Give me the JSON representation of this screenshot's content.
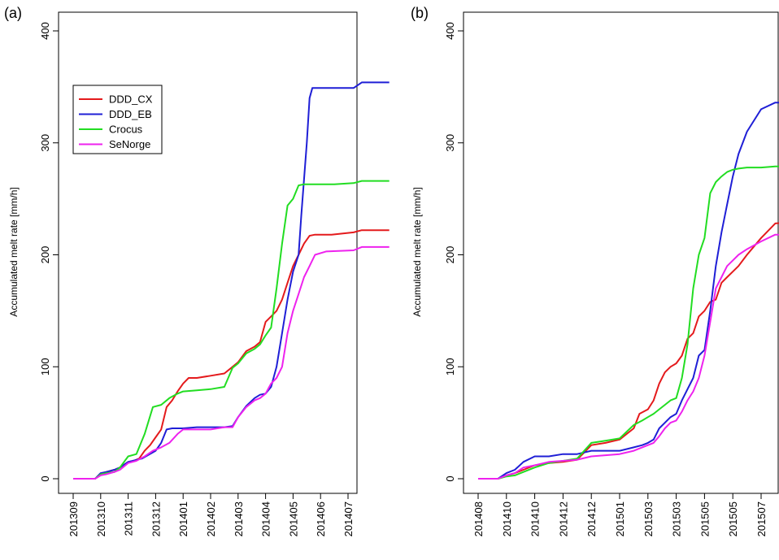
{
  "chart_data": [
    {
      "type": "line",
      "panel_label": "(a)",
      "ylabel": "Accumulated melt rate [mm/h]",
      "ylim": [
        0,
        400
      ],
      "yticks": [
        0,
        100,
        200,
        300,
        400
      ],
      "xticks": [
        "201309",
        "201310",
        "201311",
        "201312",
        "201401",
        "201402",
        "201403",
        "201404",
        "201405",
        "201406",
        "201407"
      ],
      "xlim": [
        0,
        11.5
      ],
      "legend": {
        "placement": "top-left"
      },
      "series": [
        {
          "name": "DDD_CX",
          "color": "#e41a1c",
          "x": [
            0,
            0.8,
            1.0,
            1.2,
            1.5,
            1.7,
            2.0,
            2.2,
            2.4,
            2.6,
            2.8,
            3.0,
            3.2,
            3.4,
            3.6,
            3.8,
            4.0,
            4.2,
            4.5,
            5.0,
            5.5,
            5.8,
            6.0,
            6.3,
            6.6,
            6.8,
            7.0,
            7.2,
            7.4,
            7.6,
            7.8,
            8.0,
            8.2,
            8.4,
            8.6,
            8.8,
            9.0,
            9.2,
            9.4,
            10.2,
            10.5,
            11.5
          ],
          "y": [
            0,
            0,
            4,
            6,
            8,
            10,
            15,
            16,
            18,
            25,
            30,
            37,
            44,
            64,
            70,
            78,
            85,
            90,
            90,
            92,
            94,
            100,
            104,
            114,
            118,
            122,
            140,
            145,
            150,
            160,
            175,
            190,
            200,
            210,
            217,
            218,
            218,
            218,
            218,
            220,
            222,
            222
          ]
        },
        {
          "name": "DDD_EB",
          "color": "#1f1fd6",
          "x": [
            0,
            0.8,
            1.0,
            1.2,
            1.5,
            1.7,
            2.0,
            2.5,
            3.0,
            3.2,
            3.4,
            3.6,
            4.0,
            4.5,
            5.0,
            5.5,
            5.8,
            6.0,
            6.3,
            6.6,
            6.8,
            7.0,
            7.2,
            7.4,
            7.6,
            7.8,
            8.0,
            8.2,
            8.3,
            8.5,
            8.6,
            8.7,
            8.9,
            9.3,
            10.2,
            10.5,
            11.5
          ],
          "y": [
            0,
            0,
            5,
            6,
            8,
            10,
            15,
            18,
            25,
            32,
            44,
            45,
            45,
            46,
            46,
            46,
            47,
            55,
            65,
            72,
            75,
            76,
            82,
            100,
            130,
            160,
            185,
            200,
            235,
            300,
            340,
            349,
            349,
            349,
            349,
            354,
            354
          ]
        },
        {
          "name": "Crocus",
          "color": "#22dd22",
          "x": [
            0,
            0.8,
            1.0,
            1.2,
            1.5,
            1.7,
            2.0,
            2.3,
            2.6,
            2.9,
            3.2,
            3.5,
            3.8,
            4.0,
            4.5,
            5.0,
            5.5,
            5.8,
            6.0,
            6.3,
            6.6,
            6.8,
            7.0,
            7.2,
            7.4,
            7.6,
            7.8,
            8.0,
            8.2,
            8.4,
            8.6,
            8.8,
            9.0,
            9.5,
            10.2,
            10.5,
            11.5
          ],
          "y": [
            0,
            0,
            4,
            5,
            6,
            10,
            20,
            22,
            40,
            64,
            66,
            72,
            76,
            78,
            79,
            80,
            82,
            99,
            103,
            112,
            116,
            120,
            128,
            135,
            170,
            210,
            244,
            250,
            262,
            263,
            263,
            263,
            263,
            263,
            264,
            266,
            266
          ]
        },
        {
          "name": "SeNorge",
          "color": "#ee22ee",
          "x": [
            0,
            0.8,
            1.0,
            1.2,
            1.5,
            1.7,
            2.0,
            2.3,
            2.6,
            2.9,
            3.2,
            3.5,
            3.8,
            4.0,
            4.3,
            4.6,
            5.0,
            5.5,
            5.8,
            6.0,
            6.3,
            6.6,
            6.8,
            7.0,
            7.2,
            7.4,
            7.6,
            7.8,
            8.0,
            8.2,
            8.4,
            8.6,
            8.8,
            9.2,
            10.2,
            10.5,
            11.5
          ],
          "y": [
            0,
            0,
            3,
            4,
            6,
            8,
            14,
            16,
            20,
            25,
            28,
            32,
            40,
            44,
            44,
            44,
            44,
            46,
            46,
            55,
            64,
            70,
            72,
            76,
            85,
            90,
            100,
            130,
            150,
            165,
            180,
            190,
            200,
            203,
            204,
            207,
            207
          ]
        }
      ]
    },
    {
      "type": "line",
      "panel_label": "(b)",
      "ylabel": "Accumulated melt rate [mm/h]",
      "ylim": [
        0,
        400
      ],
      "yticks": [
        0,
        100,
        200,
        300,
        400
      ],
      "xticks": [
        "201408",
        "201410",
        "201410",
        "201412",
        "201412",
        "201501",
        "201503",
        "201503",
        "201505",
        "201505",
        "201507"
      ],
      "xlim": [
        0,
        11.5
      ],
      "series": [
        {
          "name": "DDD_CX",
          "color": "#e41a1c",
          "x": [
            0,
            0.7,
            1.0,
            1.3,
            1.6,
            2.0,
            2.5,
            3.0,
            3.5,
            4.0,
            4.5,
            5.0,
            5.5,
            5.7,
            6.0,
            6.2,
            6.4,
            6.6,
            6.8,
            7.0,
            7.2,
            7.4,
            7.6,
            7.8,
            8.0,
            8.2,
            8.4,
            8.6,
            8.8,
            9.0,
            9.2,
            9.5,
            10.0,
            10.5,
            11.5
          ],
          "y": [
            0,
            0,
            3,
            5,
            8,
            12,
            14,
            15,
            17,
            30,
            32,
            35,
            45,
            58,
            62,
            70,
            85,
            95,
            100,
            103,
            110,
            125,
            130,
            145,
            150,
            158,
            160,
            175,
            180,
            185,
            190,
            200,
            215,
            228,
            230
          ]
        },
        {
          "name": "DDD_EB",
          "color": "#1f1fd6",
          "x": [
            0,
            0.7,
            1.0,
            1.3,
            1.6,
            2.0,
            2.5,
            3.0,
            3.5,
            4.0,
            4.5,
            5.0,
            5.5,
            5.8,
            6.0,
            6.2,
            6.4,
            6.6,
            6.8,
            7.0,
            7.2,
            7.4,
            7.6,
            7.8,
            8.0,
            8.2,
            8.4,
            8.6,
            8.8,
            9.0,
            9.2,
            9.5,
            10.0,
            10.5,
            11.5
          ],
          "y": [
            0,
            0,
            5,
            8,
            15,
            20,
            20,
            22,
            22,
            25,
            25,
            25,
            28,
            30,
            32,
            35,
            45,
            50,
            55,
            58,
            70,
            80,
            90,
            110,
            115,
            150,
            190,
            220,
            245,
            270,
            290,
            310,
            330,
            336,
            336
          ]
        },
        {
          "name": "Crocus",
          "color": "#22dd22",
          "x": [
            0,
            0.7,
            1.0,
            1.3,
            1.6,
            2.0,
            2.5,
            3.0,
            3.5,
            4.0,
            4.5,
            5.0,
            5.5,
            5.8,
            6.0,
            6.2,
            6.4,
            6.6,
            6.8,
            7.0,
            7.2,
            7.4,
            7.6,
            7.8,
            8.0,
            8.2,
            8.4,
            8.6,
            8.8,
            9.0,
            9.2,
            9.5,
            10.0,
            10.5,
            11.5
          ],
          "y": [
            0,
            0,
            2,
            3,
            6,
            10,
            14,
            16,
            18,
            32,
            34,
            36,
            48,
            52,
            55,
            58,
            62,
            66,
            70,
            72,
            90,
            120,
            170,
            200,
            215,
            255,
            265,
            270,
            274,
            276,
            277,
            278,
            278,
            279,
            279
          ]
        },
        {
          "name": "SeNorge",
          "color": "#ee22ee",
          "x": [
            0,
            0.7,
            1.0,
            1.3,
            1.6,
            2.0,
            2.5,
            3.0,
            3.5,
            4.0,
            4.5,
            5.0,
            5.5,
            5.8,
            6.0,
            6.2,
            6.4,
            6.6,
            6.8,
            7.0,
            7.2,
            7.4,
            7.6,
            7.8,
            8.0,
            8.2,
            8.4,
            8.6,
            8.8,
            9.0,
            9.2,
            9.5,
            10.0,
            10.5,
            11.5
          ],
          "y": [
            0,
            0,
            3,
            5,
            10,
            12,
            15,
            16,
            17,
            20,
            21,
            22,
            25,
            28,
            30,
            32,
            38,
            45,
            50,
            52,
            60,
            70,
            78,
            90,
            110,
            140,
            170,
            180,
            190,
            195,
            200,
            205,
            212,
            218,
            218
          ]
        }
      ]
    }
  ]
}
